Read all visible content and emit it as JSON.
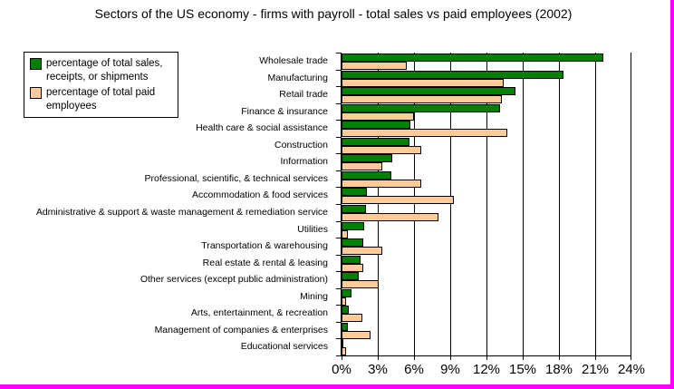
{
  "title": "Sectors of the US economy - firms with payroll - total sales vs paid employees (2002)",
  "legend": {
    "items": [
      {
        "label": "percentage of total sales, receipts, or shipments",
        "color": "#008000"
      },
      {
        "label": "percentage of total paid employees",
        "color": "#FFCC99"
      }
    ]
  },
  "colors": {
    "sales_bar": "#008000",
    "employees_bar": "#FFCC99",
    "axis": "#000000",
    "background": "#FFFFFF",
    "frame_border": "#FF00FF"
  },
  "chart_data": {
    "type": "bar",
    "orientation": "horizontal",
    "title": "Sectors of the US economy - firms with payroll - total sales vs paid employees (2002)",
    "categories": [
      "Wholesale trade",
      "Manufacturing",
      "Retail trade",
      "Finance & insurance",
      "Health care & social assistance",
      "Construction",
      "Information",
      "Professional, scientific, & technical services",
      "Accommodation & food services",
      "Administrative & support & waste management & remediation service",
      "Utilities",
      "Transportation & warehousing",
      "Real estate & rental & leasing",
      "Other services (except public administration)",
      "Mining",
      "Arts, entertainment, & recreation",
      "Management of companies & enterprises",
      "Educational services"
    ],
    "series": [
      {
        "name": "percentage of total sales, receipts, or shipments",
        "color": "#008000",
        "values": [
          21.7,
          18.4,
          14.4,
          13.1,
          5.7,
          5.6,
          4.2,
          4.1,
          2.1,
          2.0,
          1.9,
          1.8,
          1.6,
          1.4,
          0.8,
          0.6,
          0.5,
          0.15
        ]
      },
      {
        "name": "percentage of total paid employees",
        "color": "#FFCC99",
        "values": [
          5.4,
          13.4,
          13.3,
          6.0,
          13.7,
          6.6,
          3.4,
          6.6,
          9.3,
          8.0,
          0.55,
          3.4,
          1.8,
          3.1,
          0.4,
          1.7,
          2.4,
          0.35
        ]
      }
    ],
    "x_axis": {
      "ticks": [
        "0%",
        "3%",
        "6%",
        "9%",
        "12%",
        "15%",
        "18%",
        "21%",
        "24%"
      ],
      "min": 0,
      "max": 24,
      "step": 3,
      "unit": "%"
    },
    "grid": true,
    "legend_position": "top-left"
  }
}
